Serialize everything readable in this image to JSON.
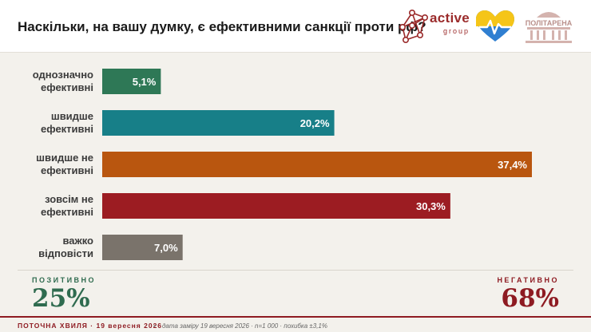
{
  "header": {
    "title": "Наскільки, на вашу думку, є ефективними санкції проти рф?",
    "logos": {
      "active_group": {
        "word": "active",
        "sub": "group"
      },
      "heart": {
        "icon": "heart-icon",
        "colors": [
          "#f5c518",
          "#2f7fd1"
        ]
      },
      "politarena": {
        "word": "ПОЛІТАРЕНА"
      }
    }
  },
  "chart_data": {
    "type": "bar",
    "orientation": "horizontal",
    "categories": [
      [
        "однозначно",
        "ефективні"
      ],
      [
        "швидше",
        "ефективні"
      ],
      [
        "швидше не",
        "ефективні"
      ],
      [
        "зовсім не",
        "ефективні"
      ],
      [
        "важко",
        "відповісти"
      ]
    ],
    "values": [
      5.1,
      20.2,
      37.4,
      30.3,
      7.0
    ],
    "value_labels": [
      "5,1%",
      "20,2%",
      "37,4%",
      "30,3%",
      "7,0%"
    ],
    "colors": [
      "#2e7856",
      "#177f88",
      "#b9560f",
      "#9c1c22",
      "#7a736b"
    ],
    "xlim": [
      0,
      42
    ],
    "grid": false
  },
  "summary": {
    "positive": {
      "label": "ПОЗИТИВНО",
      "value": "25%",
      "color": "#2f6b4f"
    },
    "negative": {
      "label": "НЕГАТИВНО",
      "value": "68%",
      "color": "#8e1b22"
    }
  },
  "footer": {
    "wave": "ПОТОЧНА ХВИЛЯ · 19 вересня 2026",
    "separator": "•",
    "meta": "дата заміру 19 вересня 2026 · n=1 000 · похибка ±3,1%"
  }
}
